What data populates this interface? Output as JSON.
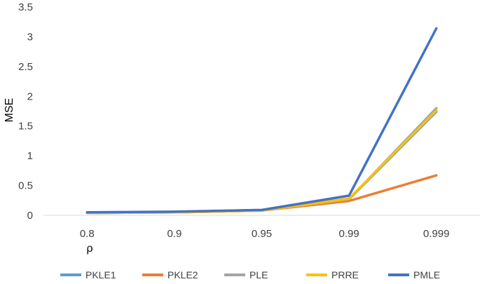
{
  "chart_data": {
    "type": "line",
    "title": "",
    "xlabel": "ρ",
    "ylabel": "MSE",
    "categories": [
      "0.8",
      "0.9",
      "0.95",
      "0.99",
      "0.999"
    ],
    "ylim": [
      0,
      3.5
    ],
    "yticks": [
      "0",
      "0.5",
      "1",
      "1.5",
      "2",
      "2.5",
      "3",
      "3.5"
    ],
    "grid": false,
    "legend_position": "bottom",
    "series": [
      {
        "name": "PKLE1",
        "color": "#5B9BD5",
        "values": [
          0.04,
          0.05,
          0.08,
          0.27,
          1.74
        ]
      },
      {
        "name": "PKLE2",
        "color": "#ED7D31",
        "values": [
          0.04,
          0.05,
          0.08,
          0.24,
          0.67
        ]
      },
      {
        "name": "PLE",
        "color": "#A5A5A5",
        "values": [
          0.04,
          0.05,
          0.08,
          0.27,
          1.8
        ]
      },
      {
        "name": "PRRE",
        "color": "#FFC000",
        "values": [
          0.04,
          0.05,
          0.08,
          0.28,
          1.76
        ]
      },
      {
        "name": "PMLE",
        "color": "#4472C4",
        "values": [
          0.05,
          0.06,
          0.09,
          0.33,
          3.14
        ]
      }
    ]
  }
}
